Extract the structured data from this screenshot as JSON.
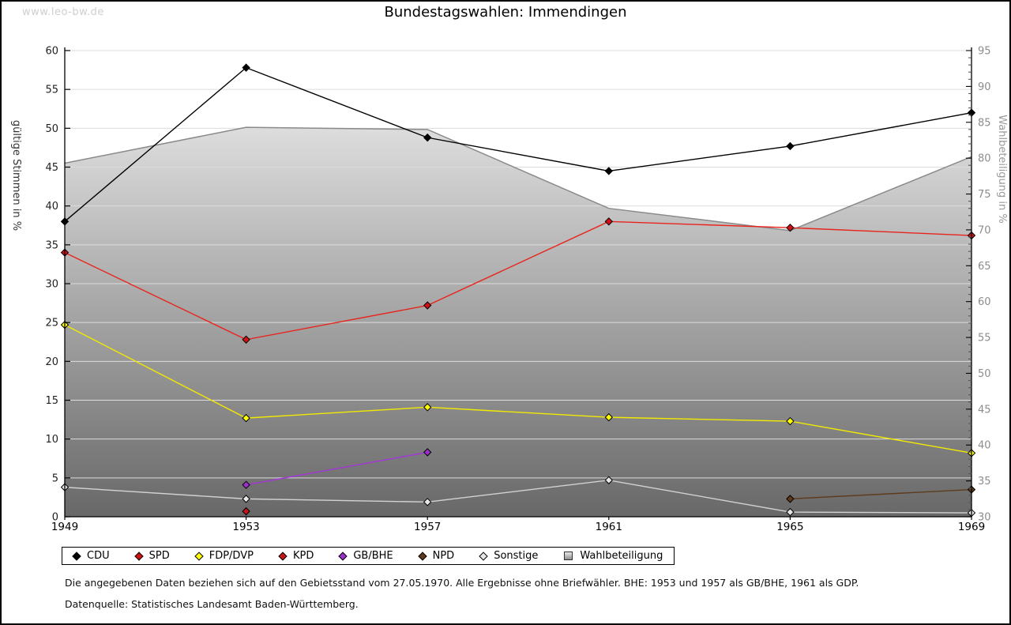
{
  "watermark": "www.leo-bw.de",
  "title": "Bundestagswahlen: Immendingen",
  "footnotes": {
    "line1": "Die angegebenen Daten beziehen sich auf den Gebietsstand vom 27.05.1970. Alle Ergebnisse ohne Briefwähler. BHE: 1953 und 1957 als GB/BHE, 1961 als GDP.",
    "line2": "Datenquelle: Statistisches Landesamt Baden-Württemberg."
  },
  "chart_data": {
    "type": "line",
    "title": "Bundestagswahlen: Immendingen",
    "categories": [
      "1949",
      "1953",
      "1957",
      "1961",
      "1965",
      "1969"
    ],
    "left_axis": {
      "label": "gültige Stimmen in %",
      "min": 0,
      "max": 60,
      "tick_step": 5,
      "tick_color": "#222222",
      "label_color": "#333333"
    },
    "right_axis": {
      "label": "Wahlbeteiligung in %",
      "min": 30,
      "max": 95,
      "tick_step": 5,
      "minor_tick_step": 1,
      "tick_color": "#8c8c8c",
      "label_color": "#999999"
    },
    "grid": {
      "direction": "horizontal",
      "every_left_units": 5,
      "color": "#dcdcdc"
    },
    "series": [
      {
        "name": "CDU",
        "axis": "left",
        "color": "#000000",
        "marker_color": "#000000",
        "values": [
          38.0,
          57.8,
          48.8,
          44.5,
          47.7,
          52.0
        ]
      },
      {
        "name": "SPD",
        "axis": "left",
        "color": "#e8251d",
        "marker_color": "#d11016",
        "values": [
          34.0,
          22.8,
          27.2,
          38.0,
          37.2,
          36.2
        ]
      },
      {
        "name": "FDP/DVP",
        "axis": "left",
        "color": "#f2ea00",
        "marker_color": "#ffff00",
        "values": [
          24.7,
          12.7,
          14.1,
          12.8,
          12.3,
          8.2
        ]
      },
      {
        "name": "KPD",
        "axis": "left",
        "color": "#c2151b",
        "marker_color": "#c2151b",
        "values": [
          null,
          0.7,
          null,
          null,
          null,
          null
        ]
      },
      {
        "name": "GB/BHE",
        "axis": "left",
        "color": "#a435d8",
        "marker_color": "#9a2fc9",
        "values": [
          null,
          4.1,
          8.3,
          null,
          null,
          null
        ]
      },
      {
        "name": "NPD",
        "axis": "left",
        "color": "#5e3a1c",
        "marker_color": "#5e3a1c",
        "values": [
          null,
          null,
          null,
          null,
          2.3,
          3.5
        ]
      },
      {
        "name": "Sonstige",
        "axis": "left",
        "color": "#d2d2d2",
        "marker_color": "#e6e6e6",
        "values": [
          3.8,
          2.3,
          1.9,
          4.7,
          0.6,
          0.5
        ]
      }
    ],
    "area_series": {
      "name": "Wahlbeteiligung",
      "axis": "right",
      "edge_color": "#8a8a8a",
      "fill_top": "#f4f4f4",
      "fill_bottom": "#686868",
      "values": [
        79.3,
        84.3,
        84.0,
        73.0,
        69.9,
        80.2
      ]
    },
    "legend": [
      "CDU",
      "SPD",
      "FDP/DVP",
      "KPD",
      "GB/BHE",
      "NPD",
      "Sonstige",
      "Wahlbeteiligung"
    ],
    "legend_position": "bottom"
  }
}
